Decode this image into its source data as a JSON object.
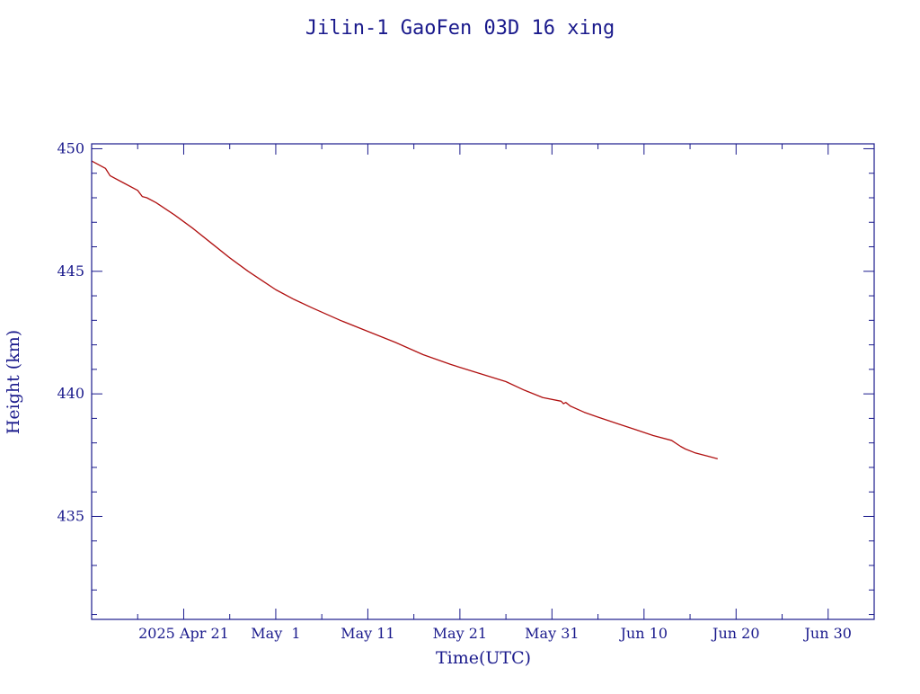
{
  "chart_data": {
    "type": "line",
    "title": "Jilin-1 GaoFen 03D 16 xing",
    "xlabel": "Time(UTC)",
    "ylabel": "Height (km)",
    "xlim": [
      "2025-04-11T00:00",
      "2025-07-05T00:00"
    ],
    "ylim": [
      430.8,
      450.2
    ],
    "x_ticks": [
      {
        "date": "2025-04-21",
        "label": "2025 Apr 21"
      },
      {
        "date": "2025-05-01",
        "label": "May  1"
      },
      {
        "date": "2025-05-11",
        "label": "May 11"
      },
      {
        "date": "2025-05-21",
        "label": "May 21"
      },
      {
        "date": "2025-05-31",
        "label": "May 31"
      },
      {
        "date": "2025-06-10",
        "label": "Jun 10"
      },
      {
        "date": "2025-06-20",
        "label": "Jun 20"
      },
      {
        "date": "2025-06-30",
        "label": "Jun 30"
      }
    ],
    "y_ticks": [
      435,
      440,
      445,
      450
    ],
    "grid": false,
    "colors": {
      "axes": "#1a1a8c",
      "line": "#b01010"
    },
    "series": [
      {
        "x": [
          "2025-04-11T00:00",
          "2025-04-12T12:00",
          "2025-04-13T00:00",
          "2025-04-14T12:00",
          "2025-04-16T00:00",
          "2025-04-16T12:00",
          "2025-04-17T00:00",
          "2025-04-18T00:00",
          "2025-04-20T00:00",
          "2025-04-22T00:00",
          "2025-04-24T00:00",
          "2025-04-26T00:00",
          "2025-04-28T00:00",
          "2025-04-30T00:00",
          "2025-05-01T00:00",
          "2025-05-03T00:00",
          "2025-05-05T00:00",
          "2025-05-08T00:00",
          "2025-05-11T00:00",
          "2025-05-14T00:00",
          "2025-05-17T00:00",
          "2025-05-20T00:00",
          "2025-05-23T00:00",
          "2025-05-26T00:00",
          "2025-05-28T00:00",
          "2025-05-30T00:00",
          "2025-06-01T00:00",
          "2025-06-01T06:00",
          "2025-06-01T12:00",
          "2025-06-02T00:00",
          "2025-06-03T12:00",
          "2025-06-05T00:00",
          "2025-06-07T00:00",
          "2025-06-09T00:00",
          "2025-06-11T00:00",
          "2025-06-13T00:00",
          "2025-06-14T00:00",
          "2025-06-14T12:00",
          "2025-06-15T12:00",
          "2025-06-17T00:00",
          "2025-06-18T00:00"
        ],
        "y": [
          449.5,
          449.2,
          448.9,
          448.6,
          448.3,
          448.05,
          448.0,
          447.8,
          447.3,
          446.75,
          446.15,
          445.55,
          445.0,
          444.5,
          444.25,
          443.85,
          443.5,
          443.0,
          442.55,
          442.1,
          441.6,
          441.2,
          440.85,
          440.5,
          440.15,
          439.85,
          439.7,
          439.6,
          439.65,
          439.5,
          439.25,
          439.05,
          438.8,
          438.55,
          438.3,
          438.1,
          437.85,
          437.75,
          437.6,
          437.45,
          437.35
        ]
      }
    ]
  }
}
